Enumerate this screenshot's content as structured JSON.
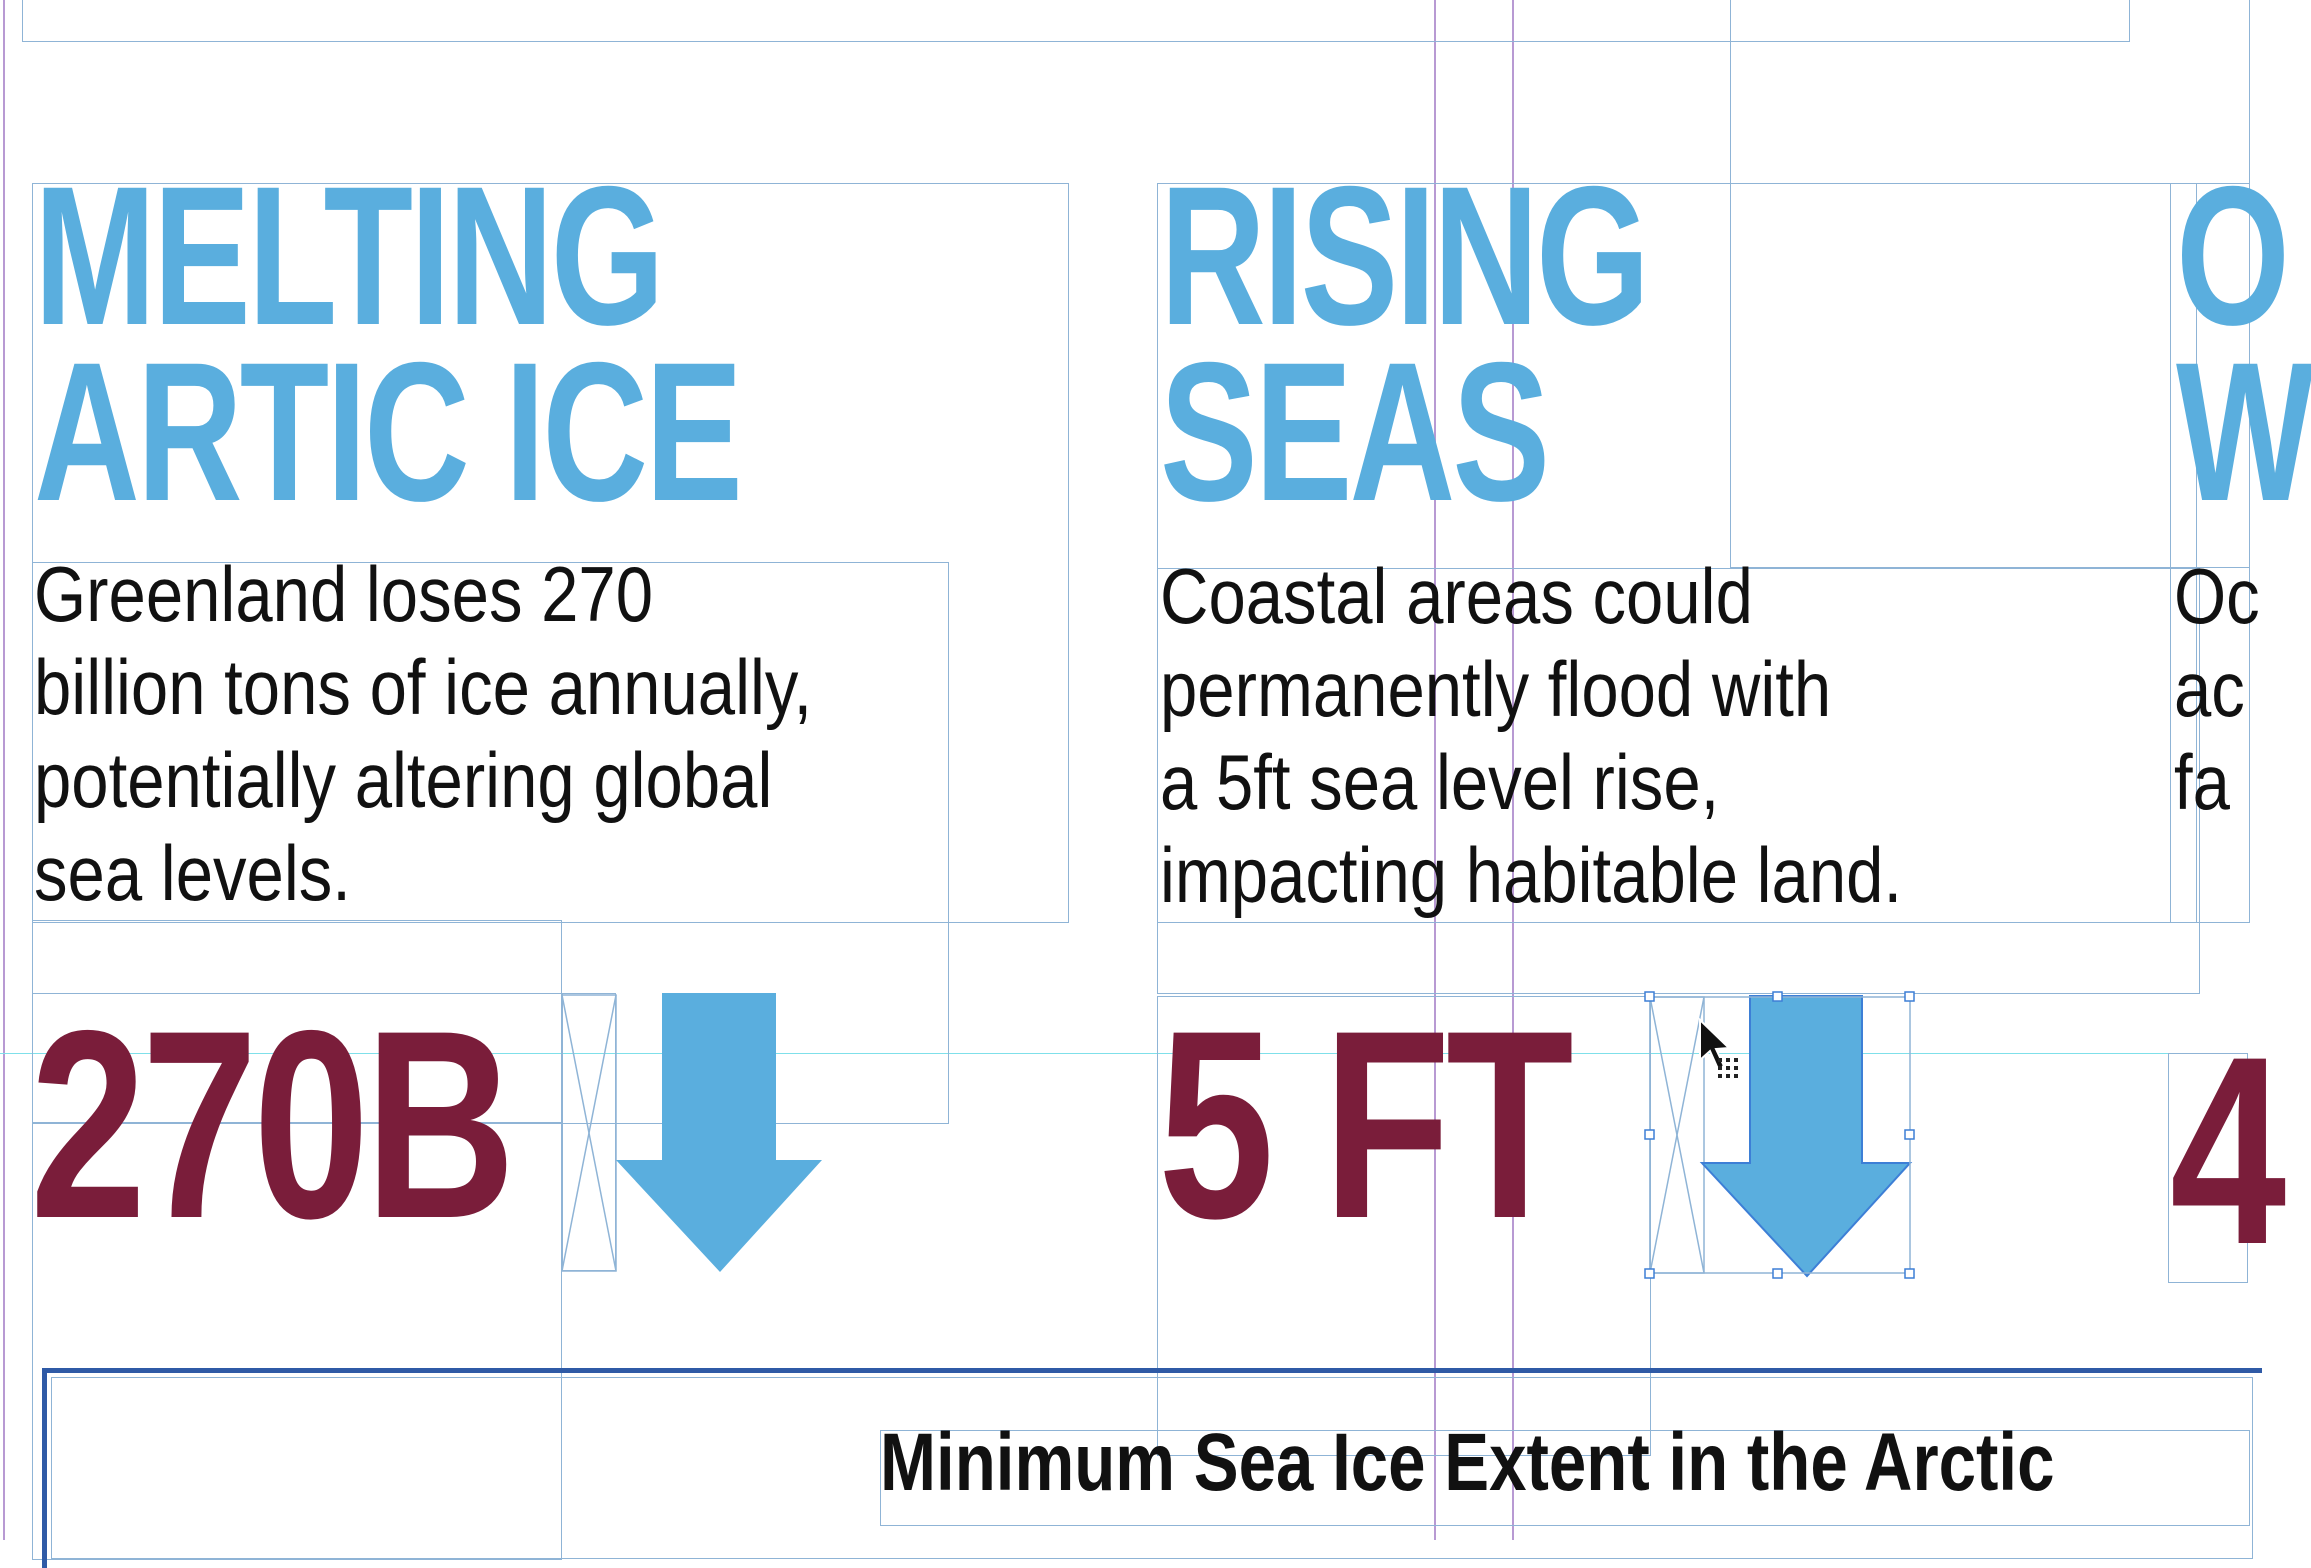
{
  "colors": {
    "heading": "#5aaede",
    "stat": "#7a1d3a",
    "body": "#111111",
    "frame": "#8fb4d6",
    "guide": "#9a6fc0",
    "selection": "#3d7fd6"
  },
  "columns": [
    {
      "heading": [
        "MELTING",
        "ARTIC ICE"
      ],
      "body": [
        "Greenland loses 270",
        "billion tons of ice annually,",
        "potentially altering global",
        "sea levels."
      ],
      "stat": "270B",
      "icon": "down-arrow-icon"
    },
    {
      "heading": [
        "RISING",
        "SEAS"
      ],
      "body": [
        "Coastal areas could",
        "permanently flood with",
        "a 5ft sea level rise,",
        "impacting habitable land."
      ],
      "stat": "5 FT",
      "icon": "down-arrow-icon"
    },
    {
      "heading": [
        "O",
        "W"
      ],
      "body": [
        "Oc",
        "ac",
        "fa"
      ],
      "stat": "4"
    }
  ],
  "chart_section": {
    "title": "Minimum Sea Ice Extent in the Arctic"
  },
  "cursor": {
    "icon": "move-cursor-icon"
  }
}
